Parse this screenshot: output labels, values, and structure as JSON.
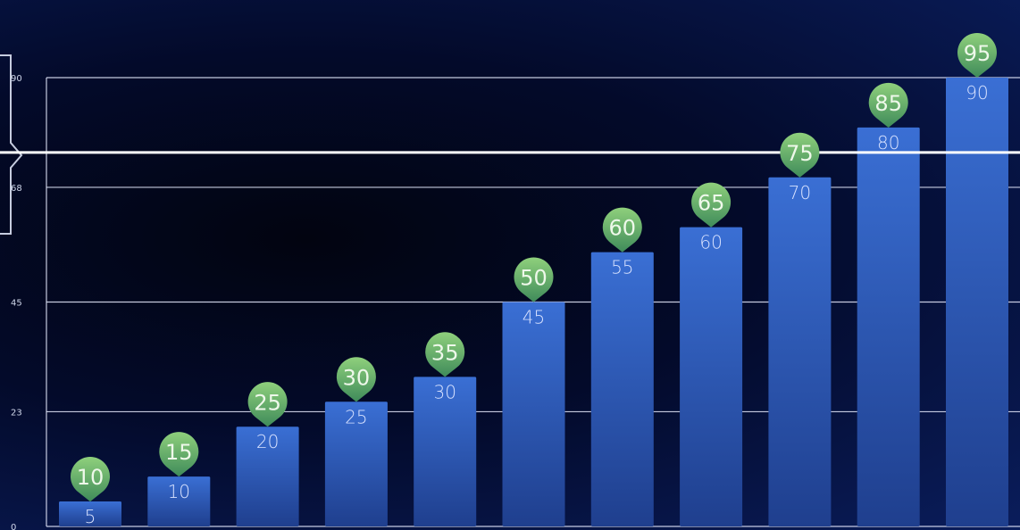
{
  "chart_data": {
    "type": "bar",
    "categories": [
      "",
      "",
      "",
      "",
      "",
      "",
      "",
      "",
      "",
      "",
      ""
    ],
    "series": [
      {
        "values": [
          5,
          10,
          20,
          25,
          30,
          45,
          55,
          60,
          70,
          80,
          90
        ]
      }
    ],
    "markers": [
      10,
      15,
      25,
      30,
      35,
      50,
      60,
      65,
      75,
      85,
      95
    ],
    "ylim": [
      0,
      90
    ],
    "yticks": [
      "0",
      "23",
      "45",
      "68",
      "90"
    ],
    "reference_line": 75,
    "grid": true,
    "title": "",
    "xlabel": "",
    "ylabel": ""
  },
  "colors": {
    "bar_top": "#3a6fd4",
    "bar_bottom": "#1f3f8e",
    "gridline": "#e8ecff",
    "pin_fill": "#6fbf72",
    "pin_fill_dark": "#3f8b5a",
    "reference_line": "#ffffff"
  }
}
